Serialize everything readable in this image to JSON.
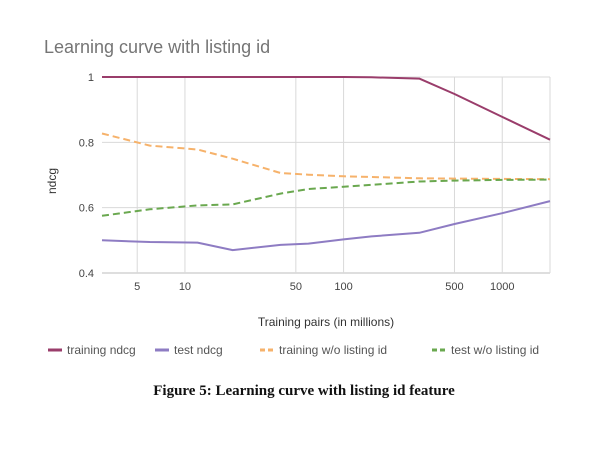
{
  "chart_data": {
    "type": "line",
    "title": "Learning curve with listing id",
    "xlabel": "Training pairs (in millions)",
    "ylabel": "ndcg",
    "x_scale": "log",
    "xlim": [
      3,
      2000
    ],
    "ylim": [
      0.4,
      1.0
    ],
    "xticks": [
      5,
      10,
      50,
      100,
      500,
      1000
    ],
    "yticks": [
      0.4,
      0.6,
      0.8,
      1
    ],
    "grid": true,
    "legend_position": "bottom",
    "x": [
      3,
      6,
      12,
      20,
      40,
      60,
      100,
      150,
      300,
      500,
      1000,
      2000
    ],
    "series": [
      {
        "name": "training ndcg",
        "color": "#9a3d6b",
        "dash": "solid",
        "values": [
          1.0,
          1.0,
          1.0,
          1.0,
          1.0,
          1.0,
          1.0,
          0.999,
          0.995,
          0.948,
          0.878,
          0.808
        ]
      },
      {
        "name": "test ndcg",
        "color": "#8e7cc3",
        "dash": "solid",
        "values": [
          0.5,
          0.495,
          0.493,
          0.47,
          0.486,
          0.49,
          0.503,
          0.512,
          0.523,
          0.55,
          0.583,
          0.62
        ]
      },
      {
        "name": "training w/o listing id",
        "color": "#f6b26b",
        "dash": "dashed",
        "values": [
          0.827,
          0.79,
          0.778,
          0.75,
          0.706,
          0.701,
          0.696,
          0.694,
          0.69,
          0.689,
          0.688,
          0.687
        ]
      },
      {
        "name": "test w/o listing id",
        "color": "#6aa84f",
        "dash": "dashed",
        "values": [
          0.575,
          0.595,
          0.607,
          0.61,
          0.643,
          0.657,
          0.664,
          0.67,
          0.68,
          0.683,
          0.685,
          0.686
        ]
      }
    ]
  },
  "caption": "Figure 5: Learning curve with listing id feature"
}
